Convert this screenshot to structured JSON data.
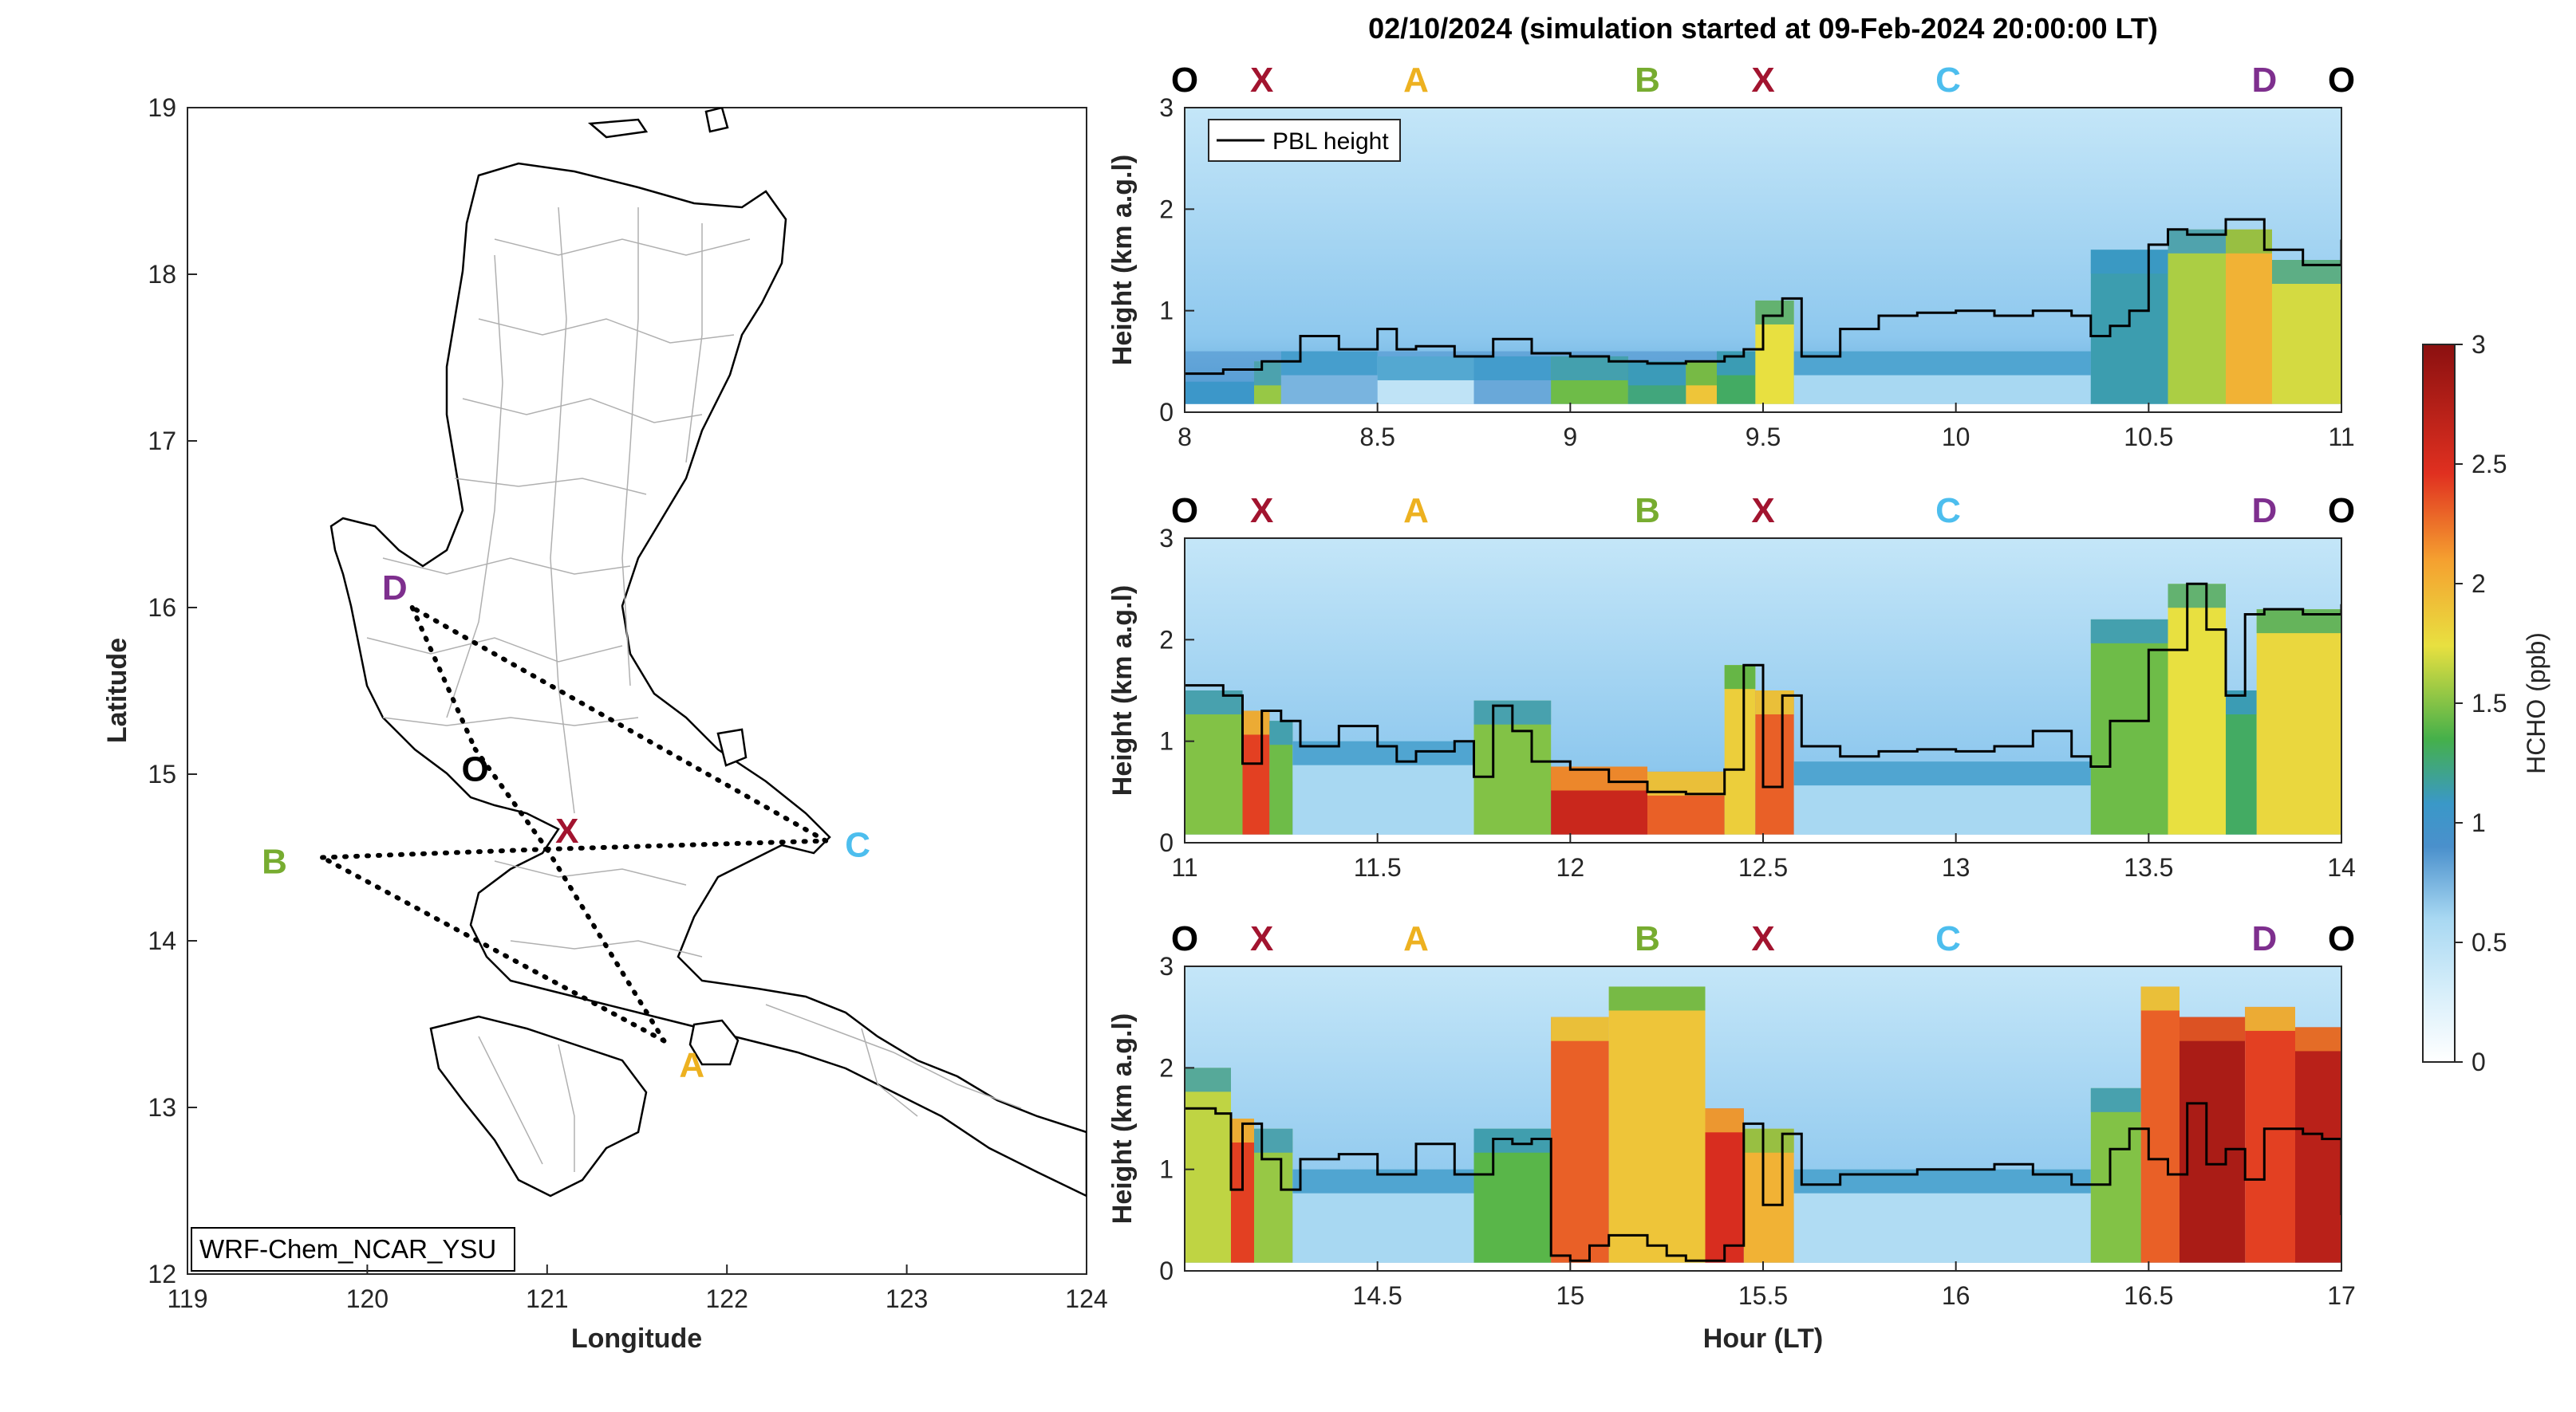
{
  "figure": {
    "title": "02/10/2024 (simulation started at 09-Feb-2024 20:00:00 LT)",
    "xlabel": "Hour (LT)",
    "ylabel": "Height (km a.g.l)"
  },
  "colors": {
    "O": "#000000",
    "X": "#a2142f",
    "A": "#edb120",
    "B": "#77ac30",
    "C": "#4dbeee",
    "D": "#7e2f8e",
    "pbl_line": "#000000",
    "colormap_stops": [
      "#ffffff",
      "#d6eefa",
      "#a8d8f2",
      "#4a90cc",
      "#3a98c8",
      "#45b04a",
      "#e8e040",
      "#f5a030",
      "#e03020",
      "#8b1010"
    ]
  },
  "chart_data": [
    {
      "type": "map",
      "xlabel": "Longitude",
      "ylabel": "Latitude",
      "xlim": [
        119,
        124
      ],
      "ylim": [
        12,
        19
      ],
      "xticks": [
        "119",
        "120",
        "121",
        "122",
        "123",
        "124"
      ],
      "yticks": [
        "12",
        "13",
        "14",
        "15",
        "16",
        "17",
        "18",
        "19"
      ],
      "model_label": "WRF-Chem_NCAR_YSU",
      "waypoints": [
        {
          "name": "D",
          "lon": 120.25,
          "lat": 16.0
        },
        {
          "name": "O",
          "lon": 120.6,
          "lat": 15.15
        },
        {
          "name": "X",
          "lon": 121.0,
          "lat": 14.55
        },
        {
          "name": "C",
          "lon": 122.55,
          "lat": 14.6
        },
        {
          "name": "B",
          "lon": 119.75,
          "lat": 14.5
        },
        {
          "name": "A",
          "lon": 121.65,
          "lat": 13.4
        }
      ],
      "flight_path": [
        "O",
        "X",
        "A",
        "B",
        "X",
        "C",
        "D",
        "O"
      ]
    },
    {
      "type": "heatmap",
      "panel": "top",
      "xlim": [
        8,
        11
      ],
      "ylim": [
        0,
        3
      ],
      "xticks": [
        "8",
        "8.5",
        "9",
        "9.5",
        "10",
        "10.5",
        "11"
      ],
      "yticks": [
        "0",
        "1",
        "2",
        "3"
      ],
      "legend": "PBL height",
      "waypoint_labels": [
        {
          "name": "O",
          "x": 8.0
        },
        {
          "name": "X",
          "x": 8.2
        },
        {
          "name": "A",
          "x": 8.6
        },
        {
          "name": "B",
          "x": 9.2
        },
        {
          "name": "X",
          "x": 9.5
        },
        {
          "name": "C",
          "x": 9.98
        },
        {
          "name": "D",
          "x": 10.8
        },
        {
          "name": "O",
          "x": 11.0
        }
      ],
      "pbl_height": {
        "x": [
          8.0,
          8.1,
          8.2,
          8.3,
          8.4,
          8.5,
          8.55,
          8.6,
          8.7,
          8.8,
          8.9,
          9.0,
          9.1,
          9.2,
          9.3,
          9.4,
          9.45,
          9.5,
          9.55,
          9.6,
          9.7,
          9.8,
          9.9,
          10.0,
          10.1,
          10.2,
          10.3,
          10.35,
          10.4,
          10.45,
          10.5,
          10.55,
          10.6,
          10.7,
          10.8,
          10.9,
          11.0
        ],
        "y": [
          0.38,
          0.42,
          0.5,
          0.75,
          0.62,
          0.82,
          0.62,
          0.65,
          0.55,
          0.72,
          0.58,
          0.55,
          0.5,
          0.48,
          0.5,
          0.55,
          0.62,
          0.95,
          1.12,
          0.55,
          0.82,
          0.95,
          0.98,
          1.0,
          0.95,
          1.0,
          0.95,
          0.75,
          0.85,
          1.0,
          1.65,
          1.8,
          1.75,
          1.9,
          1.6,
          1.45,
          1.7
        ]
      },
      "hcho_segments": [
        {
          "x0": 8.0,
          "x1": 8.18,
          "top": 0.3,
          "value": 0.95
        },
        {
          "x0": 8.18,
          "x1": 8.25,
          "top": 0.5,
          "value": 1.55
        },
        {
          "x0": 8.25,
          "x1": 8.5,
          "top": 0.6,
          "value": 0.75
        },
        {
          "x0": 8.5,
          "x1": 8.75,
          "top": 0.55,
          "value": 0.45
        },
        {
          "x0": 8.75,
          "x1": 8.95,
          "top": 0.55,
          "value": 0.8
        },
        {
          "x0": 8.95,
          "x1": 9.15,
          "top": 0.55,
          "value": 1.45
        },
        {
          "x0": 9.15,
          "x1": 9.3,
          "top": 0.5,
          "value": 1.25
        },
        {
          "x0": 9.3,
          "x1": 9.38,
          "top": 0.5,
          "value": 1.9
        },
        {
          "x0": 9.38,
          "x1": 9.48,
          "top": 0.6,
          "value": 1.3
        },
        {
          "x0": 9.48,
          "x1": 9.58,
          "top": 1.1,
          "value": 1.75
        },
        {
          "x0": 9.58,
          "x1": 10.35,
          "top": 0.6,
          "value": 0.6
        },
        {
          "x0": 10.35,
          "x1": 10.55,
          "top": 1.6,
          "value": 1.15
        },
        {
          "x0": 10.55,
          "x1": 10.7,
          "top": 1.8,
          "value": 1.6
        },
        {
          "x0": 10.7,
          "x1": 10.82,
          "top": 1.8,
          "value": 2.0
        },
        {
          "x0": 10.82,
          "x1": 11.0,
          "top": 1.5,
          "value": 1.7
        }
      ]
    },
    {
      "type": "heatmap",
      "panel": "middle",
      "xlim": [
        11,
        14
      ],
      "ylim": [
        0,
        3
      ],
      "xticks": [
        "11",
        "11.5",
        "12",
        "12.5",
        "13",
        "13.5",
        "14"
      ],
      "yticks": [
        "0",
        "1",
        "2",
        "3"
      ],
      "waypoint_labels": [
        {
          "name": "O",
          "x": 11.0
        },
        {
          "name": "X",
          "x": 11.2
        },
        {
          "name": "A",
          "x": 11.6
        },
        {
          "name": "B",
          "x": 12.2
        },
        {
          "name": "X",
          "x": 12.5
        },
        {
          "name": "C",
          "x": 12.98
        },
        {
          "name": "D",
          "x": 13.8
        },
        {
          "name": "O",
          "x": 14.0
        }
      ],
      "pbl_height": {
        "x": [
          11.0,
          11.05,
          11.1,
          11.15,
          11.2,
          11.25,
          11.3,
          11.4,
          11.5,
          11.55,
          11.6,
          11.7,
          11.75,
          11.8,
          11.85,
          11.9,
          12.0,
          12.1,
          12.2,
          12.3,
          12.4,
          12.45,
          12.5,
          12.55,
          12.6,
          12.7,
          12.8,
          12.9,
          13.0,
          13.1,
          13.2,
          13.3,
          13.35,
          13.4,
          13.5,
          13.6,
          13.65,
          13.7,
          13.75,
          13.8,
          13.9,
          14.0
        ],
        "y": [
          1.55,
          1.55,
          1.45,
          0.78,
          1.3,
          1.2,
          0.95,
          1.15,
          0.95,
          0.8,
          0.9,
          1.0,
          0.65,
          1.35,
          1.1,
          0.8,
          0.72,
          0.6,
          0.5,
          0.48,
          0.72,
          1.75,
          0.55,
          1.45,
          0.95,
          0.85,
          0.9,
          0.92,
          0.9,
          0.95,
          1.1,
          0.85,
          0.75,
          1.2,
          1.9,
          2.55,
          2.1,
          1.45,
          2.25,
          2.3,
          2.25,
          2.35
        ]
      },
      "hcho_segments": [
        {
          "x0": 11.0,
          "x1": 11.15,
          "top": 1.5,
          "value": 1.5
        },
        {
          "x0": 11.15,
          "x1": 11.22,
          "top": 1.3,
          "value": 2.4
        },
        {
          "x0": 11.22,
          "x1": 11.28,
          "top": 1.2,
          "value": 1.45
        },
        {
          "x0": 11.28,
          "x1": 11.75,
          "top": 1.0,
          "value": 0.6
        },
        {
          "x0": 11.75,
          "x1": 11.95,
          "top": 1.4,
          "value": 1.5
        },
        {
          "x0": 11.95,
          "x1": 12.2,
          "top": 0.75,
          "value": 2.6
        },
        {
          "x0": 12.2,
          "x1": 12.4,
          "top": 0.7,
          "value": 2.3
        },
        {
          "x0": 12.4,
          "x1": 12.48,
          "top": 1.75,
          "value": 1.85
        },
        {
          "x0": 12.48,
          "x1": 12.58,
          "top": 1.5,
          "value": 2.3
        },
        {
          "x0": 12.58,
          "x1": 13.35,
          "top": 0.8,
          "value": 0.6
        },
        {
          "x0": 13.35,
          "x1": 13.55,
          "top": 2.2,
          "value": 1.45
        },
        {
          "x0": 13.55,
          "x1": 13.7,
          "top": 2.55,
          "value": 1.75
        },
        {
          "x0": 13.7,
          "x1": 13.78,
          "top": 1.5,
          "value": 1.3
        },
        {
          "x0": 13.78,
          "x1": 14.0,
          "top": 2.3,
          "value": 1.8
        }
      ]
    },
    {
      "type": "heatmap",
      "panel": "bottom",
      "xlim": [
        14,
        17
      ],
      "ylim": [
        0,
        3
      ],
      "xticks": [
        "14.5",
        "15",
        "15.5",
        "16",
        "16.5",
        "17"
      ],
      "yticks": [
        "0",
        "1",
        "2",
        "3"
      ],
      "waypoint_labels": [
        {
          "name": "O",
          "x": 14.0
        },
        {
          "name": "X",
          "x": 14.2
        },
        {
          "name": "A",
          "x": 14.6
        },
        {
          "name": "B",
          "x": 15.2
        },
        {
          "name": "X",
          "x": 15.5
        },
        {
          "name": "C",
          "x": 15.98
        },
        {
          "name": "D",
          "x": 16.8
        },
        {
          "name": "O",
          "x": 17.0
        }
      ],
      "pbl_height": {
        "x": [
          14.0,
          14.08,
          14.12,
          14.15,
          14.2,
          14.25,
          14.3,
          14.4,
          14.5,
          14.6,
          14.7,
          14.8,
          14.85,
          14.9,
          14.95,
          15.0,
          15.05,
          15.1,
          15.2,
          15.25,
          15.3,
          15.4,
          15.45,
          15.5,
          15.55,
          15.6,
          15.7,
          15.8,
          15.9,
          16.0,
          16.1,
          16.2,
          16.3,
          16.4,
          16.45,
          16.5,
          16.55,
          16.6,
          16.65,
          16.7,
          16.75,
          16.8,
          16.9,
          16.95,
          17.0
        ],
        "y": [
          1.6,
          1.55,
          0.8,
          1.45,
          1.1,
          0.8,
          1.1,
          1.15,
          0.95,
          1.25,
          0.95,
          1.3,
          1.25,
          1.3,
          0.15,
          0.1,
          0.25,
          0.35,
          0.25,
          0.15,
          0.1,
          0.25,
          1.45,
          0.65,
          1.35,
          0.85,
          0.95,
          0.95,
          1.0,
          1.0,
          1.05,
          0.95,
          0.85,
          1.2,
          1.4,
          1.1,
          0.95,
          1.65,
          1.05,
          1.2,
          0.9,
          1.4,
          1.35,
          1.3,
          0.55
        ]
      },
      "hcho_segments": [
        {
          "x0": 14.0,
          "x1": 14.12,
          "top": 2.0,
          "value": 1.65
        },
        {
          "x0": 14.12,
          "x1": 14.18,
          "top": 1.5,
          "value": 2.4
        },
        {
          "x0": 14.18,
          "x1": 14.28,
          "top": 1.4,
          "value": 1.55
        },
        {
          "x0": 14.28,
          "x1": 14.75,
          "top": 1.0,
          "value": 0.6
        },
        {
          "x0": 14.75,
          "x1": 14.95,
          "top": 1.4,
          "value": 1.4
        },
        {
          "x0": 14.95,
          "x1": 15.1,
          "top": 2.5,
          "value": 2.3
        },
        {
          "x0": 15.1,
          "x1": 15.35,
          "top": 2.8,
          "value": 1.9
        },
        {
          "x0": 15.35,
          "x1": 15.45,
          "top": 1.6,
          "value": 2.5
        },
        {
          "x0": 15.45,
          "x1": 15.58,
          "top": 1.4,
          "value": 2.0
        },
        {
          "x0": 15.58,
          "x1": 16.35,
          "top": 1.0,
          "value": 0.55
        },
        {
          "x0": 16.35,
          "x1": 16.48,
          "top": 1.8,
          "value": 1.5
        },
        {
          "x0": 16.48,
          "x1": 16.58,
          "top": 2.8,
          "value": 2.3
        },
        {
          "x0": 16.58,
          "x1": 16.75,
          "top": 2.5,
          "value": 2.8
        },
        {
          "x0": 16.75,
          "x1": 16.88,
          "top": 2.6,
          "value": 2.4
        },
        {
          "x0": 16.88,
          "x1": 17.0,
          "top": 2.4,
          "value": 2.7
        }
      ]
    },
    {
      "type": "colorbar",
      "label": "HCHO (ppb)",
      "range": [
        0,
        3
      ],
      "ticks": [
        "0",
        "0.5",
        "1",
        "1.5",
        "2",
        "2.5",
        "3"
      ]
    }
  ]
}
